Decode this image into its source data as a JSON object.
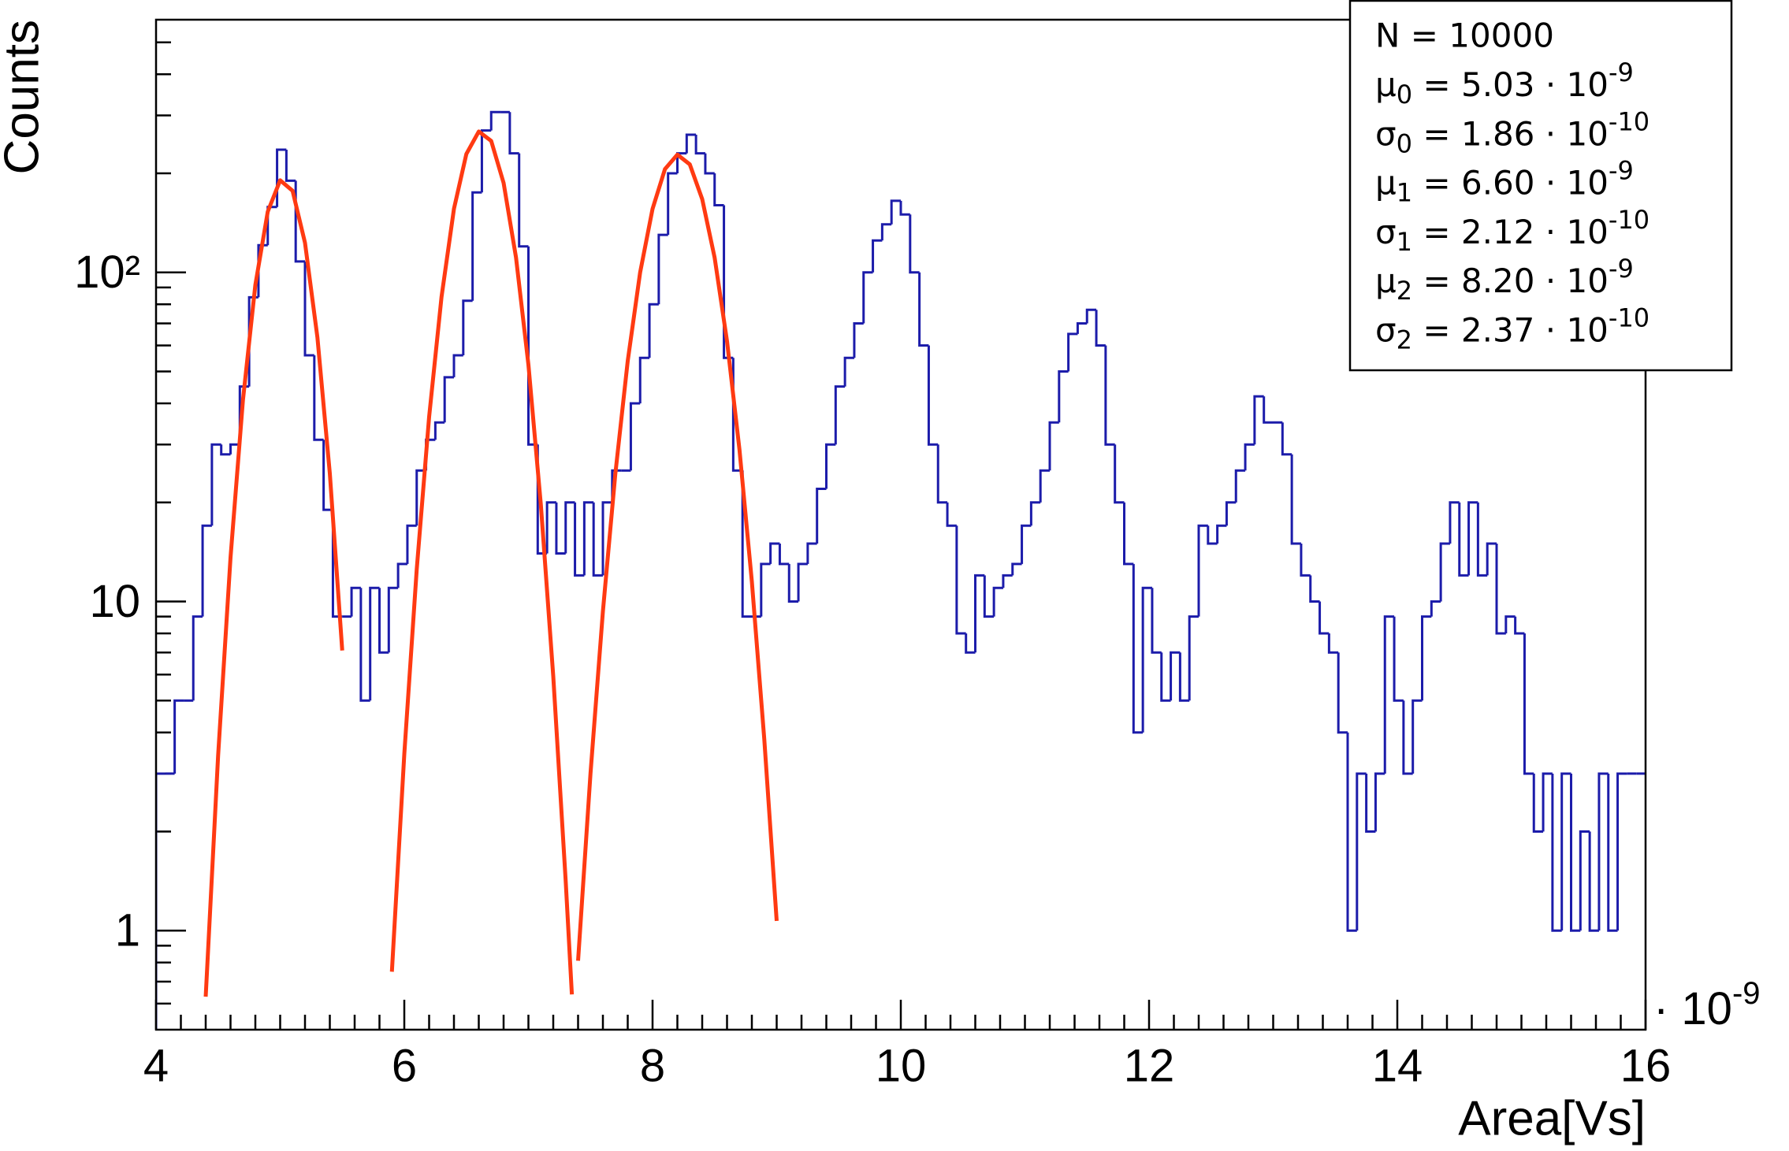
{
  "chart_data": {
    "type": "histogram",
    "x_label": "Area[Vs]",
    "y_label": "Counts",
    "x_multiplier": {
      "text": "· 10",
      "exponent": "-9"
    },
    "color": "#1c1caa",
    "log_y": true,
    "xlim": [
      4,
      16
    ],
    "ylim": [
      0.5,
      586
    ],
    "xticks": [
      4,
      6,
      8,
      10,
      12,
      14,
      16
    ],
    "x_minor_ticks": [
      4.2,
      4.4,
      4.6,
      4.8,
      5,
      5.2,
      5.4,
      5.6,
      5.8,
      6.2,
      6.4,
      6.6,
      6.8,
      7,
      7.2,
      7.4,
      7.6,
      7.8,
      8.2,
      8.4,
      8.6,
      8.8,
      9,
      9.2,
      9.4,
      9.6,
      9.8,
      10.2,
      10.4,
      10.6,
      10.8,
      11,
      11.2,
      11.4,
      11.6,
      11.8,
      12.2,
      12.4,
      12.6,
      12.8,
      13,
      13.2,
      13.4,
      13.6,
      13.8,
      14.2,
      14.4,
      14.6,
      14.8,
      15,
      15.2,
      15.4,
      15.6,
      15.8
    ],
    "yticks": [
      1,
      10,
      {
        "value": 100,
        "label": "10²"
      }
    ],
    "y_minor_ticks": [
      0.6,
      0.7,
      0.8,
      0.9,
      2,
      3,
      4,
      5,
      6,
      7,
      8,
      9,
      20,
      30,
      40,
      50,
      60,
      70,
      80,
      90,
      200,
      300,
      400,
      500
    ],
    "bins": [
      4,
      4.075,
      4.15,
      4.225,
      4.3,
      4.375,
      4.45,
      4.525,
      4.6,
      4.675,
      4.75,
      4.825,
      4.9,
      4.975,
      5.05,
      5.125,
      5.2,
      5.275,
      5.35,
      5.425,
      5.5,
      5.575,
      5.65,
      5.725,
      5.8,
      5.875,
      5.95,
      6.025,
      6.1,
      6.175,
      6.25,
      6.325,
      6.4,
      6.475,
      6.55,
      6.625,
      6.7,
      6.775,
      6.85,
      6.925,
      7,
      7.075,
      7.15,
      7.225,
      7.3,
      7.375,
      7.45,
      7.525,
      7.6,
      7.675,
      7.75,
      7.825,
      7.9,
      7.975,
      8.05,
      8.125,
      8.2,
      8.275,
      8.35,
      8.425,
      8.5,
      8.575,
      8.65,
      8.725,
      8.8,
      8.875,
      8.95,
      9.025,
      9.1,
      9.175,
      9.25,
      9.325,
      9.4,
      9.475,
      9.55,
      9.625,
      9.7,
      9.775,
      9.85,
      9.925,
      10,
      10.075,
      10.15,
      10.225,
      10.3,
      10.375,
      10.45,
      10.525,
      10.6,
      10.675,
      10.75,
      10.825,
      10.9,
      10.975,
      11.05,
      11.125,
      11.2,
      11.275,
      11.35,
      11.425,
      11.5,
      11.575,
      11.65,
      11.725,
      11.8,
      11.875,
      11.95,
      12.025,
      12.1,
      12.175,
      12.25,
      12.325,
      12.4,
      12.475,
      12.55,
      12.625,
      12.7,
      12.775,
      12.85,
      12.925,
      13,
      13.075,
      13.15,
      13.225,
      13.3,
      13.375,
      13.45,
      13.525,
      13.6,
      13.675,
      13.75,
      13.825,
      13.9,
      13.975,
      14.05,
      14.125,
      14.2,
      14.275,
      14.35,
      14.425,
      14.5,
      14.575,
      14.65,
      14.725,
      14.8,
      14.875,
      14.95,
      15.025,
      15.1,
      15.175,
      15.25,
      15.325,
      15.4,
      15.475,
      15.55,
      15.625,
      15.7,
      15.775,
      15.85,
      15.925,
      16
    ],
    "values": [
      3,
      3,
      5,
      5,
      9,
      17,
      30,
      28,
      30,
      45,
      84,
      121,
      158,
      236,
      190,
      108,
      56,
      31,
      19,
      9,
      9,
      11,
      5,
      11,
      7,
      11,
      13,
      17,
      25,
      31,
      35,
      48,
      56,
      82,
      175,
      270,
      307,
      307,
      230,
      120,
      30,
      14,
      20,
      14,
      20,
      12,
      20,
      12,
      20,
      25,
      25,
      40,
      55,
      80,
      130,
      200,
      230,
      262,
      230,
      200,
      160,
      55,
      25,
      9,
      9,
      13,
      15,
      13,
      10,
      13,
      15,
      22,
      30,
      45,
      55,
      70,
      100,
      125,
      140,
      165,
      150,
      100,
      60,
      30,
      20,
      17,
      8,
      7,
      12,
      9,
      11,
      12,
      13,
      17,
      20,
      25,
      35,
      50,
      65,
      70,
      77,
      60,
      30,
      20,
      13,
      4,
      11,
      7,
      5,
      7,
      5,
      9,
      17,
      15,
      17,
      20,
      25,
      30,
      42,
      35,
      35,
      28,
      15,
      12,
      10,
      8,
      7,
      4,
      1,
      3,
      2,
      3,
      9,
      5,
      3,
      5,
      9,
      10,
      15,
      20,
      12,
      20,
      12,
      15,
      8,
      9,
      8,
      3,
      2,
      3,
      1,
      3,
      1,
      2,
      1,
      3,
      1,
      3,
      3,
      3
    ],
    "fits": [
      {
        "color": "#ff3a12",
        "x": [
          4.4,
          4.5,
          4.6,
          4.7,
          4.8,
          4.9,
          5.0,
          5.1,
          5.2,
          5.3,
          5.4,
          5.5
        ],
        "values": [
          0.63,
          3.4,
          13.6,
          40.9,
          91.6,
          153,
          190.5,
          177,
          123,
          63.5,
          24.5,
          7.1
        ]
      },
      {
        "color": "#ff3a12",
        "x": [
          5.9,
          6.0,
          6.1,
          6.2,
          6.3,
          6.4,
          6.5,
          6.6,
          6.7,
          6.8,
          6.9,
          7.0,
          7.1,
          7.2,
          7.3,
          7.35
        ],
        "values": [
          0.75,
          3.44,
          12.5,
          36.4,
          84.3,
          156,
          229,
          268,
          251,
          187,
          111,
          52.4,
          19.7,
          5.93,
          1.42,
          0.64
        ]
      },
      {
        "color": "#ff3a12",
        "x": [
          7.4,
          7.5,
          7.6,
          7.7,
          7.8,
          7.9,
          8.0,
          8.1,
          8.2,
          8.3,
          8.4,
          8.5,
          8.6,
          8.7,
          8.8,
          8.9,
          9.0
        ],
        "values": [
          0.81,
          3.0,
          9.33,
          24.4,
          53.8,
          100,
          156,
          206,
          228,
          213,
          167,
          111,
          61.8,
          29.0,
          11.5,
          3.82,
          1.07
        ]
      }
    ],
    "stats": {
      "entries": "N = 10000",
      "lines": [
        {
          "symbol": "μ",
          "index": "0",
          "text": " = 5.03 · 10",
          "exponent": "-9"
        },
        {
          "symbol": "σ",
          "index": "0",
          "text": " = 1.86 · 10",
          "exponent": "-10"
        },
        {
          "symbol": "μ",
          "index": "1",
          "text": " = 6.60 · 10",
          "exponent": "-9"
        },
        {
          "symbol": "σ",
          "index": "1",
          "text": " = 2.12 · 10",
          "exponent": "-10"
        },
        {
          "symbol": "μ",
          "index": "2",
          "text": " = 8.20 · 10",
          "exponent": "-9"
        },
        {
          "symbol": "σ",
          "index": "2",
          "text": " = 2.37 · 10",
          "exponent": "-10"
        }
      ]
    }
  }
}
